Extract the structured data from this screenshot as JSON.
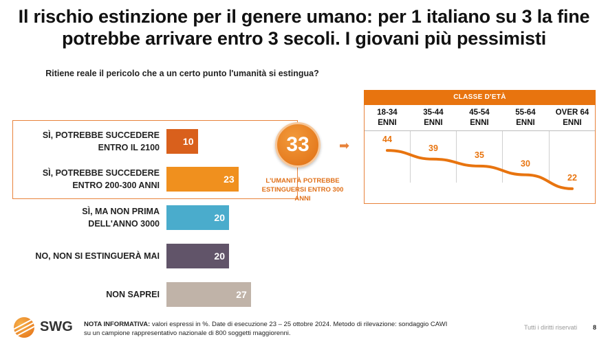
{
  "title_line1": "Il rischio estinzione per il genere umano: per 1 italiano su 3 la fine",
  "title_line2": "potrebbe arrivare entro 3 secoli. I giovani più pessimisti",
  "chart_data": [
    {
      "type": "bar",
      "title": "Ritiene reale il pericolo che a un certo punto l'umanità si estingua?",
      "orientation": "horizontal",
      "categories": [
        [
          "SÌ, POTREBBE SUCCEDERE",
          "ENTRO IL 2100"
        ],
        [
          "SÌ, POTREBBE SUCCEDERE",
          "ENTRO 200-300 ANNI"
        ],
        [
          "SÌ, MA NON PRIMA",
          "DELL'ANNO 3000"
        ],
        [
          "NO, NON SI ESTINGUERÀ MAI"
        ],
        [
          "NON SAPREI"
        ]
      ],
      "values": [
        10,
        23,
        20,
        20,
        27
      ],
      "colors": [
        "#d9601c",
        "#f0901e",
        "#4aaccc",
        "#615469",
        "#c0b3a8"
      ],
      "xlim": [
        0,
        100
      ],
      "highlight": {
        "value": "33",
        "note_line1": "L'UMANITÀ POTREBBE",
        "note_line2": "ESTINGUERSI ENTRO 300 ANNI"
      }
    },
    {
      "type": "line",
      "header": "CLASSE D'ETÀ",
      "categories": [
        [
          "18-34",
          "ENNI"
        ],
        [
          "35-44",
          "ENNI"
        ],
        [
          "45-54",
          "ENNI"
        ],
        [
          "55-64",
          "ENNI"
        ],
        [
          "OVER 64",
          "ENNI"
        ]
      ],
      "values": [
        44,
        39,
        35,
        30,
        22
      ],
      "color": "#e8740f",
      "ylim": [
        20,
        46
      ]
    }
  ],
  "footer": {
    "logo": "SWG",
    "note_label": "NOTA INFORMATIVA:",
    "note_line1": " valori espressi in %. Date di esecuzione 23 – 25 ottobre 2024. Metodo di rilevazione: sondaggio CAWI",
    "note_line2": "su un campione rappresentativo nazionale di 800 soggetti maggiorenni.",
    "rights": "Tutti i diritti riservati",
    "page": "8"
  }
}
